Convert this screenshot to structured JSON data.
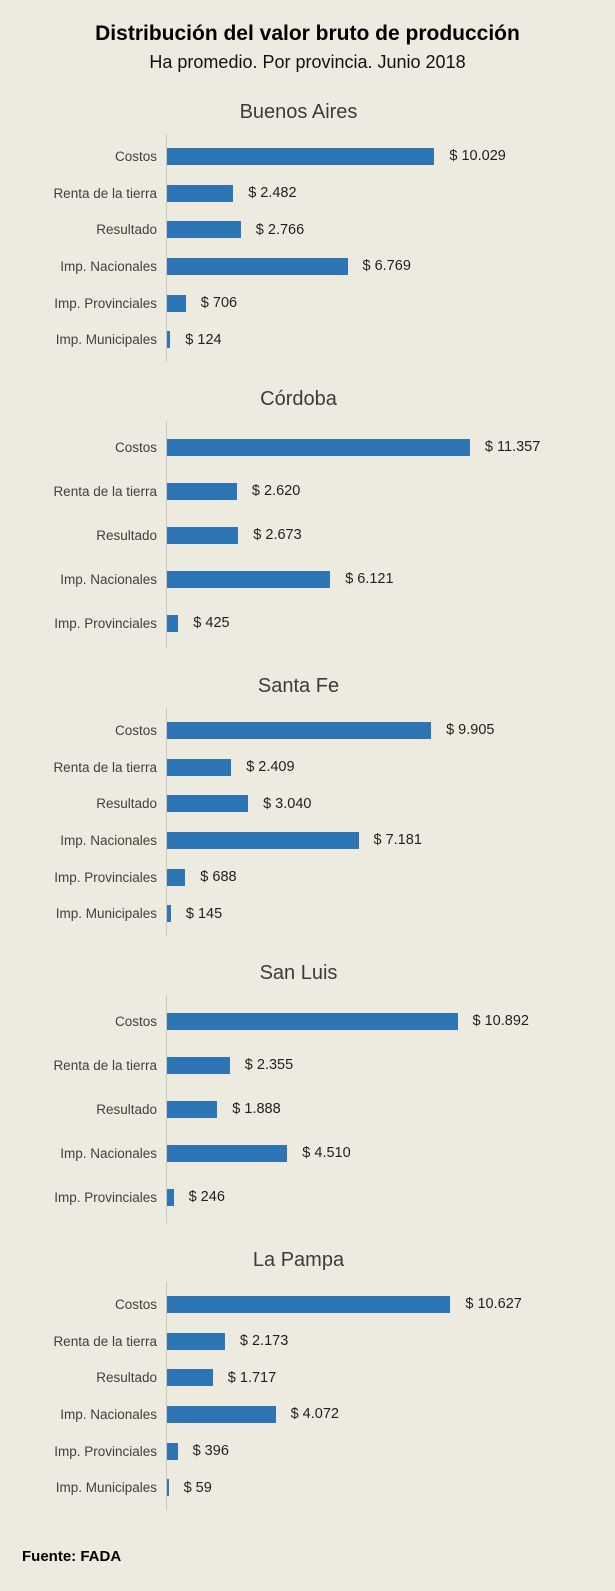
{
  "page": {
    "title": "Distribución del valor bruto de producción",
    "subtitle": "Ha promedio. Por provincia. Junio 2018",
    "source": "Fuente: FADA"
  },
  "colors": {
    "background": "#EDEBE0",
    "bar": "#2E75B6",
    "axis_line": "#C9C6BA",
    "label_text": "#404040",
    "value_text": "#1F1F1F"
  },
  "chart_data": [
    {
      "type": "bar",
      "orientation": "horizontal",
      "title": "Buenos Aires",
      "xlabel": "",
      "ylabel": "",
      "xmax": 12600,
      "grid": false,
      "legend": false,
      "categories": [
        "Costos",
        "Renta de la tierra",
        "Resultado",
        "Imp. Nacionales",
        "Imp. Provinciales",
        "Imp. Municipales"
      ],
      "values": [
        10029,
        2482,
        2766,
        6769,
        706,
        124
      ],
      "value_labels": [
        "$ 10.029",
        "$ 2.482",
        "$ 2.766",
        "$ 6.769",
        "$ 706",
        "$ 124"
      ]
    },
    {
      "type": "bar",
      "orientation": "horizontal",
      "title": "Córdoba",
      "xlabel": "",
      "ylabel": "",
      "xmax": 12600,
      "grid": false,
      "legend": false,
      "categories": [
        "Costos",
        "Renta de la tierra",
        "Resultado",
        "Imp. Nacionales",
        "Imp. Provinciales"
      ],
      "values": [
        11357,
        2620,
        2673,
        6121,
        425
      ],
      "value_labels": [
        "$ 11.357",
        "$ 2.620",
        "$ 2.673",
        "$ 6.121",
        "$ 425"
      ]
    },
    {
      "type": "bar",
      "orientation": "horizontal",
      "title": "Santa Fe",
      "xlabel": "",
      "ylabel": "",
      "xmax": 12600,
      "grid": false,
      "legend": false,
      "categories": [
        "Costos",
        "Renta de la tierra",
        "Resultado",
        "Imp. Nacionales",
        "Imp. Provinciales",
        "Imp. Municipales"
      ],
      "values": [
        9905,
        2409,
        3040,
        7181,
        688,
        145
      ],
      "value_labels": [
        "$ 9.905",
        "$ 2.409",
        "$ 3.040",
        "$ 7.181",
        "$ 688",
        "$ 145"
      ]
    },
    {
      "type": "bar",
      "orientation": "horizontal",
      "title": "San Luis",
      "xlabel": "",
      "ylabel": "",
      "xmax": 12600,
      "grid": false,
      "legend": false,
      "categories": [
        "Costos",
        "Renta de la tierra",
        "Resultado",
        "Imp. Nacionales",
        "Imp. Provinciales"
      ],
      "values": [
        10892,
        2355,
        1888,
        4510,
        246
      ],
      "value_labels": [
        "$ 10.892",
        "$ 2.355",
        "$ 1.888",
        "$ 4.510",
        "$ 246"
      ]
    },
    {
      "type": "bar",
      "orientation": "horizontal",
      "title": "La Pampa",
      "xlabel": "",
      "ylabel": "",
      "xmax": 12600,
      "grid": false,
      "legend": false,
      "categories": [
        "Costos",
        "Renta de la tierra",
        "Resultado",
        "Imp. Nacionales",
        "Imp. Provinciales",
        "Imp. Municipales"
      ],
      "values": [
        10627,
        2173,
        1717,
        4072,
        396,
        59
      ],
      "value_labels": [
        "$ 10.627",
        "$ 2.173",
        "$ 1.717",
        "$ 4.072",
        "$ 396",
        "$ 59"
      ]
    }
  ]
}
